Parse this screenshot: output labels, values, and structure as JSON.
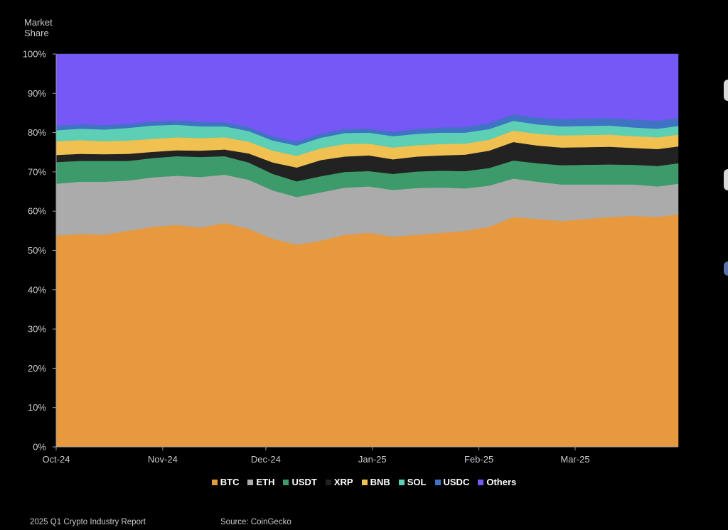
{
  "y_axis_label_line1": "Market",
  "y_axis_label_line2": "Share",
  "footer": {
    "report": "2025 Q1 Crypto Industry Report",
    "source": "Source: CoinGecko"
  },
  "chart_data": {
    "type": "area",
    "stacked": true,
    "xlabel": "",
    "ylabel": "Market Share",
    "ylim": [
      0,
      100
    ],
    "y_ticks": [
      "0%",
      "10%",
      "20%",
      "30%",
      "40%",
      "50%",
      "60%",
      "70%",
      "80%",
      "90%",
      "100%"
    ],
    "x_tick_labels": [
      "Oct-24",
      "Nov-24",
      "Dec-24",
      "Jan-25",
      "Feb-25",
      "Mar-25"
    ],
    "x_tick_dates": [
      "2024-10-01",
      "2024-11-01",
      "2024-12-01",
      "2025-01-01",
      "2025-02-01",
      "2025-03-01"
    ],
    "x": [
      "2024-10-01",
      "2024-10-08",
      "2024-10-15",
      "2024-10-22",
      "2024-10-29",
      "2024-11-05",
      "2024-11-12",
      "2024-11-19",
      "2024-11-26",
      "2024-12-03",
      "2024-12-10",
      "2024-12-17",
      "2024-12-24",
      "2024-12-31",
      "2025-01-07",
      "2025-01-14",
      "2025-01-21",
      "2025-01-28",
      "2025-02-04",
      "2025-02-11",
      "2025-02-18",
      "2025-02-25",
      "2025-03-04",
      "2025-03-11",
      "2025-03-18",
      "2025-03-25",
      "2025-03-31"
    ],
    "legend_position": "bottom",
    "series": [
      {
        "name": "BTC",
        "color": "#E8993E",
        "values": [
          53.8,
          54.2,
          54.0,
          55.0,
          56.0,
          56.5,
          55.8,
          57.0,
          55.5,
          53.0,
          51.5,
          52.5,
          54.0,
          54.5,
          53.5,
          54.0,
          54.5,
          55.0,
          56.0,
          58.5,
          58.0,
          57.5,
          58.0,
          58.5,
          58.8,
          58.5,
          59.2
        ]
      },
      {
        "name": "ETH",
        "color": "#ABABAB",
        "values": [
          13.2,
          13.3,
          13.5,
          12.8,
          12.6,
          12.5,
          12.9,
          12.3,
          12.5,
          12.3,
          12.1,
          12.3,
          12.0,
          11.8,
          11.9,
          11.9,
          11.5,
          10.8,
          10.5,
          9.8,
          9.5,
          9.3,
          8.8,
          8.3,
          8.0,
          7.8,
          7.8
        ]
      },
      {
        "name": "USDT",
        "color": "#3D9B6B",
        "values": [
          5.5,
          5.3,
          5.3,
          5.0,
          4.9,
          5.0,
          5.1,
          4.7,
          4.4,
          4.2,
          4.0,
          4.1,
          4.0,
          3.9,
          4.1,
          4.2,
          4.3,
          4.4,
          4.5,
          4.6,
          4.7,
          4.9,
          5.0,
          5.1,
          5.0,
          5.2,
          5.2
        ]
      },
      {
        "name": "XRP",
        "color": "#222222",
        "values": [
          1.8,
          1.8,
          1.7,
          1.8,
          1.6,
          1.5,
          1.6,
          1.7,
          2.3,
          2.9,
          3.5,
          4.1,
          3.9,
          4.0,
          3.7,
          3.8,
          3.9,
          4.2,
          4.4,
          4.7,
          4.5,
          4.5,
          4.5,
          4.5,
          4.3,
          4.3,
          4.3
        ]
      },
      {
        "name": "BNB",
        "color": "#F0C050",
        "values": [
          3.5,
          3.5,
          3.3,
          3.4,
          3.3,
          3.3,
          3.2,
          3.1,
          3.0,
          3.0,
          3.0,
          3.0,
          3.2,
          3.0,
          3.0,
          2.9,
          2.9,
          2.8,
          2.8,
          2.9,
          3.0,
          3.1,
          3.1,
          3.1,
          3.0,
          3.0,
          3.0
        ]
      },
      {
        "name": "SOL",
        "color": "#5CCFB4",
        "values": [
          2.8,
          2.9,
          3.0,
          3.2,
          3.4,
          3.2,
          3.0,
          2.8,
          2.7,
          2.6,
          2.6,
          2.7,
          2.8,
          2.8,
          2.9,
          2.9,
          2.9,
          2.8,
          2.7,
          2.5,
          2.4,
          2.3,
          2.3,
          2.3,
          2.2,
          2.2,
          2.2
        ]
      },
      {
        "name": "USDC",
        "color": "#3F73C4",
        "values": [
          1.1,
          1.1,
          1.1,
          1.0,
          1.0,
          1.1,
          1.1,
          1.0,
          1.0,
          1.0,
          1.0,
          1.0,
          1.0,
          1.0,
          1.1,
          1.2,
          1.3,
          1.4,
          1.5,
          1.6,
          1.7,
          1.8,
          1.9,
          1.9,
          2.0,
          2.0,
          2.0
        ]
      },
      {
        "name": "Others",
        "color": "#7558F5",
        "values": [
          18.3,
          17.9,
          18.1,
          17.8,
          17.2,
          16.9,
          17.3,
          17.4,
          18.6,
          21.0,
          22.3,
          20.3,
          19.1,
          19.0,
          19.8,
          19.1,
          18.7,
          18.6,
          17.6,
          15.4,
          16.2,
          16.6,
          16.4,
          16.3,
          16.7,
          17.0,
          16.3
        ]
      }
    ]
  }
}
